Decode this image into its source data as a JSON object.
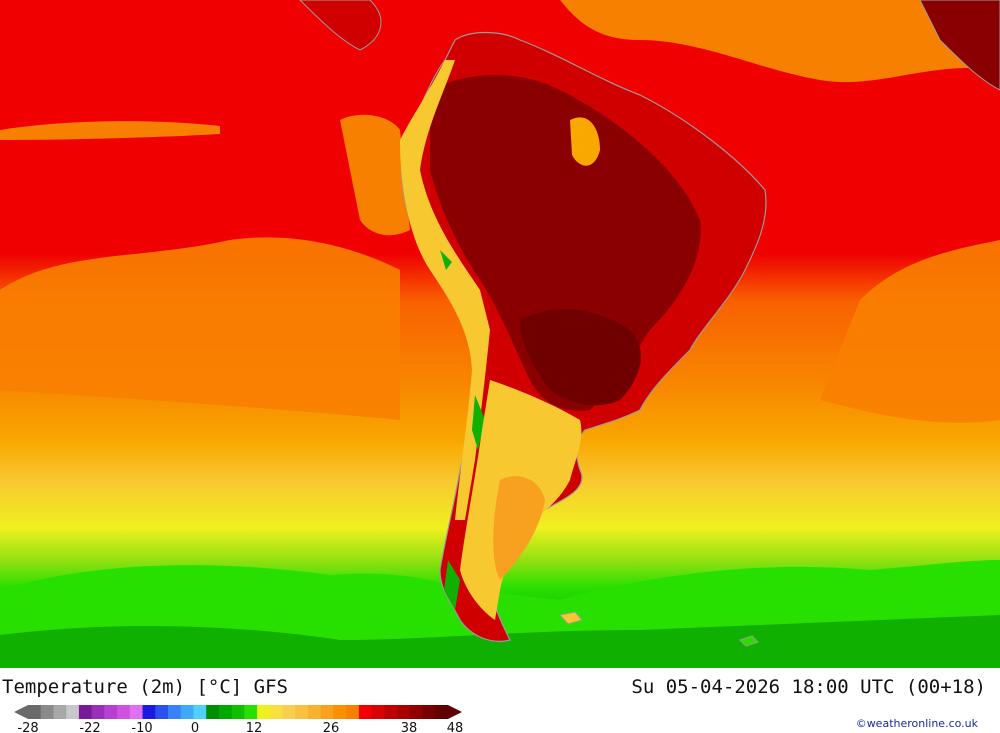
{
  "map": {
    "title": "Temperature (2m) [°C] GFS",
    "valid_time": "Su 05-04-2026 18:00 UTC (00+18)",
    "credit": "©weatheronline.co.uk",
    "region": "South America",
    "colors": {
      "very_hot": "#8a0000",
      "hot": "#c00000",
      "warm_red": "#f00000",
      "orange": "#f88000",
      "light_orange": "#f8a800",
      "yellow_orange": "#f8c830",
      "yellow": "#f0f020",
      "light_green": "#28e000",
      "green": "#10b000",
      "dark_green": "#008c00",
      "coast": "#9a9a9a"
    }
  },
  "legend": {
    "ticks": [
      "-28",
      "-22",
      "-10",
      "0",
      "12",
      "26",
      "38",
      "48"
    ],
    "colors": [
      "#6a6a6a",
      "#8a8a8a",
      "#a8a8a8",
      "#c8c8c8",
      "#7a1a9a",
      "#9a30b8",
      "#b840d0",
      "#d050e0",
      "#e070f0",
      "#1a1ae0",
      "#2a50f0",
      "#3a80f8",
      "#40a8f8",
      "#50d0f8",
      "#008c00",
      "#00a800",
      "#10c000",
      "#28e000",
      "#f0f020",
      "#f8e040",
      "#f8d050",
      "#f8c040",
      "#f8b030",
      "#f8a020",
      "#f89000",
      "#f88000",
      "#f00000",
      "#d80000",
      "#c00000",
      "#a80000",
      "#900000",
      "#780000",
      "#600000"
    ]
  }
}
